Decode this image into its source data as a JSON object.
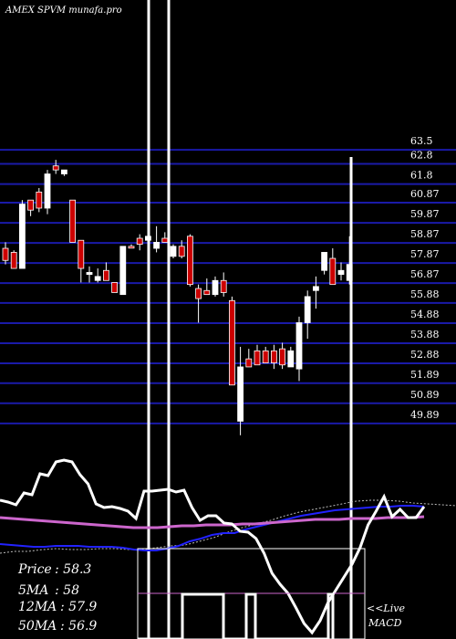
{
  "header": {
    "title": "AMEX  SPVM munafa.pro"
  },
  "chart_data": {
    "type": "candlestick",
    "title": "AMEX  SPVM munafa.pro",
    "y_ticks": [
      "63.5",
      "62.8",
      "61.8",
      "60.87",
      "59.87",
      "58.87",
      "57.87",
      "56.87",
      "55.88",
      "54.88",
      "53.88",
      "52.88",
      "51.89",
      "50.89",
      "49.89"
    ],
    "ylim": [
      49.4,
      63.9
    ],
    "candles": [
      {
        "o": 58.6,
        "h": 58.9,
        "l": 57.8,
        "c": 58.0,
        "color": "red"
      },
      {
        "o": 58.4,
        "h": 58.5,
        "l": 57.6,
        "c": 57.6,
        "color": "red"
      },
      {
        "o": 57.6,
        "h": 61.0,
        "l": 57.6,
        "c": 60.8,
        "color": "white"
      },
      {
        "o": 60.5,
        "h": 61.0,
        "l": 60.2,
        "c": 61.0,
        "color": "red"
      },
      {
        "o": 60.6,
        "h": 61.6,
        "l": 60.4,
        "c": 61.4,
        "color": "red"
      },
      {
        "o": 60.6,
        "h": 62.5,
        "l": 60.3,
        "c": 62.3,
        "color": "white"
      },
      {
        "o": 62.7,
        "h": 63.0,
        "l": 62.3,
        "c": 62.5,
        "color": "red"
      },
      {
        "o": 62.5,
        "h": 62.5,
        "l": 62.2,
        "c": 62.3,
        "color": "white"
      },
      {
        "o": 61.0,
        "h": 61.0,
        "l": 58.9,
        "c": 58.9,
        "color": "red"
      },
      {
        "o": 59.0,
        "h": 59.0,
        "l": 56.9,
        "c": 57.6,
        "color": "red"
      },
      {
        "o": 57.3,
        "h": 57.7,
        "l": 56.9,
        "c": 57.4,
        "color": "white"
      },
      {
        "o": 57.2,
        "h": 57.6,
        "l": 56.9,
        "c": 57.0,
        "color": "white"
      },
      {
        "o": 57.5,
        "h": 57.9,
        "l": 57.0,
        "c": 57.0,
        "color": "red"
      },
      {
        "o": 56.9,
        "h": 56.9,
        "l": 56.4,
        "c": 56.4,
        "color": "red"
      },
      {
        "o": 56.3,
        "h": 58.7,
        "l": 56.3,
        "c": 58.7,
        "color": "white"
      },
      {
        "o": 58.7,
        "h": 58.8,
        "l": 58.7,
        "c": 58.7,
        "color": "red"
      },
      {
        "o": 59.1,
        "h": 59.3,
        "l": 58.5,
        "c": 58.8,
        "color": "red"
      },
      {
        "o": 59.0,
        "h": 59.5,
        "l": 59.0,
        "c": 59.2,
        "color": "white"
      },
      {
        "o": 58.9,
        "h": 59.7,
        "l": 58.4,
        "c": 58.6,
        "color": "white"
      },
      {
        "o": 59.1,
        "h": 59.4,
        "l": 58.9,
        "c": 58.9,
        "color": "red"
      },
      {
        "o": 58.2,
        "h": 58.8,
        "l": 58.1,
        "c": 58.7,
        "color": "white"
      },
      {
        "o": 58.7,
        "h": 59.0,
        "l": 58.1,
        "c": 58.2,
        "color": "red"
      },
      {
        "o": 59.2,
        "h": 59.3,
        "l": 56.7,
        "c": 56.8,
        "color": "red"
      },
      {
        "o": 56.6,
        "h": 56.8,
        "l": 54.9,
        "c": 56.1,
        "color": "red"
      },
      {
        "o": 56.5,
        "h": 57.1,
        "l": 56.3,
        "c": 56.3,
        "color": "red"
      },
      {
        "o": 56.3,
        "h": 57.2,
        "l": 56.2,
        "c": 57.0,
        "color": "white"
      },
      {
        "o": 57.0,
        "h": 57.4,
        "l": 56.2,
        "c": 56.4,
        "color": "red"
      },
      {
        "o": 56.0,
        "h": 56.2,
        "l": 51.8,
        "c": 51.8,
        "color": "red"
      },
      {
        "o": 50.0,
        "h": 53.7,
        "l": 49.3,
        "c": 52.7,
        "color": "white"
      },
      {
        "o": 53.1,
        "h": 53.6,
        "l": 52.8,
        "c": 52.7,
        "color": "red"
      },
      {
        "o": 53.5,
        "h": 53.8,
        "l": 52.8,
        "c": 52.8,
        "color": "red"
      },
      {
        "o": 53.5,
        "h": 53.7,
        "l": 52.9,
        "c": 52.9,
        "color": "red"
      },
      {
        "o": 53.5,
        "h": 53.8,
        "l": 52.6,
        "c": 52.9,
        "color": "red"
      },
      {
        "o": 53.6,
        "h": 53.9,
        "l": 52.6,
        "c": 52.8,
        "color": "red"
      },
      {
        "o": 52.7,
        "h": 53.7,
        "l": 52.7,
        "c": 53.5,
        "color": "white"
      },
      {
        "o": 52.6,
        "h": 55.2,
        "l": 52.0,
        "c": 54.9,
        "color": "white"
      },
      {
        "o": 54.9,
        "h": 56.5,
        "l": 54.1,
        "c": 56.2,
        "color": "white"
      },
      {
        "o": 56.5,
        "h": 57.2,
        "l": 55.6,
        "c": 56.7,
        "color": "white"
      },
      {
        "o": 57.5,
        "h": 58.3,
        "l": 57.3,
        "c": 58.4,
        "color": "white"
      },
      {
        "o": 58.1,
        "h": 58.6,
        "l": 56.8,
        "c": 56.8,
        "color": "red"
      },
      {
        "o": 57.3,
        "h": 57.9,
        "l": 57.0,
        "c": 57.5,
        "color": "white"
      },
      {
        "o": 57.0,
        "h": 59.2,
        "l": 56.8,
        "c": 57.8,
        "color": "white"
      }
    ],
    "volume_spikes_index": [
      19,
      21,
      46
    ],
    "ma_lines": {
      "white": [
        548,
        550,
        553,
        540,
        542,
        519,
        521,
        506,
        504,
        506,
        520,
        530,
        552,
        556,
        555,
        557,
        560,
        568,
        538,
        538,
        537,
        536,
        539,
        537,
        556,
        570,
        565,
        565,
        573,
        574,
        582,
        583,
        590,
        606,
        628,
        640,
        650,
        666,
        683,
        693,
        680,
        660,
        646,
        632,
        618,
        600,
        575,
        560,
        544,
        566,
        558,
        567,
        567,
        555
      ],
      "blue": [
        596,
        597,
        598,
        599,
        599,
        598,
        598,
        598,
        599,
        599,
        599,
        600,
        602,
        603,
        603,
        601,
        598,
        593,
        590,
        586,
        584,
        584,
        580,
        577,
        574,
        571,
        568,
        565,
        563,
        561,
        559,
        558,
        557,
        556,
        555,
        555,
        554,
        554,
        555
      ],
      "magenta": [
        567,
        568,
        569,
        570,
        571,
        572,
        573,
        574,
        575,
        576,
        577,
        578,
        578,
        578,
        577,
        576,
        576,
        575,
        575,
        575,
        574,
        574,
        573,
        572,
        571,
        570,
        569,
        569,
        569,
        568,
        568,
        568,
        567,
        567,
        567,
        566
      ],
      "dotted": [
        606,
        604,
        604,
        602,
        601,
        602,
        602,
        601,
        601,
        602,
        602,
        600,
        598,
        597,
        593,
        589,
        583,
        578,
        574,
        570,
        565,
        561,
        558,
        555,
        552,
        549,
        548,
        548,
        549,
        551,
        552,
        553,
        554
      ]
    }
  },
  "info": {
    "price_label": "Price",
    "price_value": ": 58.3",
    "ma5_label": "5MA",
    "ma5_value": ": 58",
    "ma12_label": "12MA",
    "ma12_value": ": 57.9",
    "ma50_label": "50MA",
    "ma50_value": ": 56.9"
  },
  "macd": {
    "label_live": "<<Live",
    "label_macd": "MACD"
  },
  "colors": {
    "grid": "#1a1aa8",
    "up": "#ffffff",
    "down": "#cc0000",
    "ma_blue": "#2222ff",
    "ma_magenta": "#cc66cc",
    "text": "#ffffff"
  }
}
